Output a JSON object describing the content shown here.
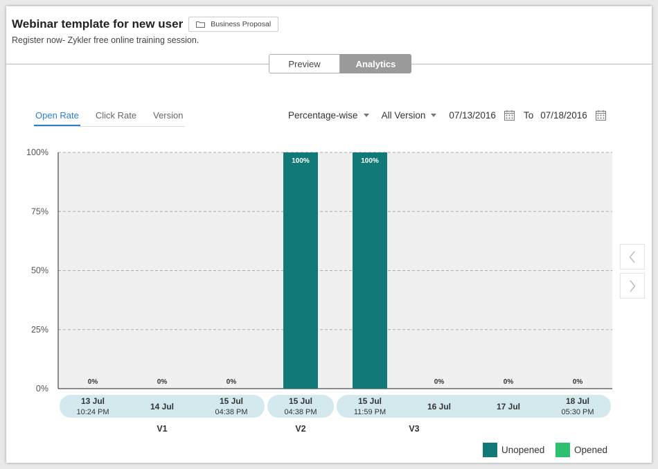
{
  "header": {
    "title": "Webinar template for new user",
    "folder_label": "Business Proposal",
    "subtitle": "Register now- Zykler free online training session."
  },
  "view_tabs": [
    {
      "label": "Preview",
      "active": false
    },
    {
      "label": "Analytics",
      "active": true
    }
  ],
  "metric_tabs": [
    {
      "label": "Open Rate",
      "active": true
    },
    {
      "label": "Click Rate",
      "active": false
    },
    {
      "label": "Version",
      "active": false
    }
  ],
  "filters": {
    "mode": "Percentage-wise",
    "version": "All Version",
    "from_date": "07/13/2016",
    "to_label": "To",
    "to_date": "07/18/2016"
  },
  "colors": {
    "unopened": "#117a78",
    "opened": "#2fbf71",
    "plot_bg": "#f0f0f0",
    "group_bg": "#d3e9ed",
    "tab_active": "#2a7fc9"
  },
  "chart_data": {
    "type": "bar",
    "ylim": [
      0,
      100
    ],
    "yticks": [
      "0%",
      "25%",
      "50%",
      "75%",
      "100%"
    ],
    "categories": [
      {
        "day": "13 Jul",
        "time": "10:24 PM",
        "version": "V1"
      },
      {
        "day": "14 Jul",
        "time": "",
        "version": "V1"
      },
      {
        "day": "15 Jul",
        "time": "04:38 PM",
        "version": "V1"
      },
      {
        "day": "15 Jul",
        "time": "04:38 PM",
        "version": "V2"
      },
      {
        "day": "15 Jul",
        "time": "11:59 PM",
        "version": "V3"
      },
      {
        "day": "16 Jul",
        "time": "",
        "version": "V3"
      },
      {
        "day": "17 Jul",
        "time": "",
        "version": "V3"
      },
      {
        "day": "18 Jul",
        "time": "05:30 PM",
        "version": "V3"
      }
    ],
    "series": [
      {
        "name": "Unopened",
        "values": [
          0,
          0,
          0,
          100,
          100,
          0,
          0,
          0
        ]
      },
      {
        "name": "Opened",
        "values": [
          0,
          0,
          0,
          0,
          0,
          0,
          0,
          0
        ]
      }
    ],
    "data_labels": [
      "0%",
      "0%",
      "0%",
      "100%",
      "100%",
      "0%",
      "0%",
      "0%"
    ],
    "groups": [
      {
        "label": "V1",
        "start": 0,
        "end": 2
      },
      {
        "label": "V2",
        "start": 3,
        "end": 3
      },
      {
        "label": "V3",
        "start": 4,
        "end": 7
      }
    ],
    "legend": [
      "Unopened",
      "Opened"
    ],
    "legend_position": "bottom-right",
    "grid": true
  }
}
